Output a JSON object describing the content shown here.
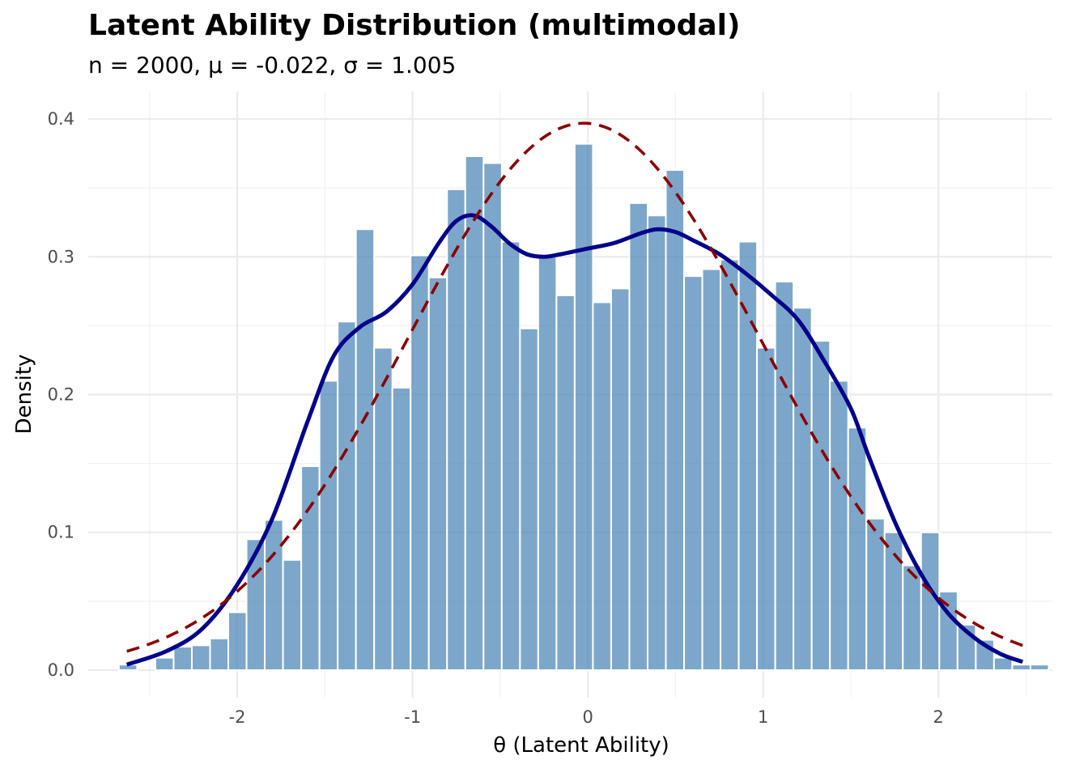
{
  "chart_data": {
    "type": "bar",
    "title": "Latent Ability Distribution (multimodal)",
    "subtitle": "n = 2000, μ = -0.022, σ = 1.005",
    "xlabel": "θ (Latent Ability)",
    "ylabel": "Density",
    "xlim": [
      -2.85,
      2.65
    ],
    "ylim": [
      -0.02,
      0.42
    ],
    "x_ticks": [
      -2,
      -1,
      0,
      1,
      2
    ],
    "x_tick_labels": [
      "-2",
      "-1",
      "0",
      "1",
      "2"
    ],
    "y_ticks": [
      0.0,
      0.1,
      0.2,
      0.3,
      0.4
    ],
    "y_tick_labels": [
      "0.0",
      "0.1",
      "0.2",
      "0.3",
      "0.4"
    ],
    "grid": true,
    "histogram": {
      "name": "histogram",
      "color": "#4682B4",
      "bin_start": -2.675,
      "bin_width": 0.104,
      "values": [
        0.004,
        0.0,
        0.009,
        0.017,
        0.018,
        0.023,
        0.042,
        0.095,
        0.109,
        0.08,
        0.148,
        0.21,
        0.253,
        0.32,
        0.234,
        0.205,
        0.301,
        0.285,
        0.349,
        0.373,
        0.368,
        0.311,
        0.248,
        0.3,
        0.272,
        0.382,
        0.267,
        0.277,
        0.339,
        0.33,
        0.363,
        0.286,
        0.291,
        0.298,
        0.311,
        0.234,
        0.282,
        0.263,
        0.239,
        0.21,
        0.176,
        0.11,
        0.1,
        0.076,
        0.1,
        0.057,
        0.033,
        0.022,
        0.009,
        0.004,
        0.004
      ]
    },
    "series": [
      {
        "type": "line",
        "style": "solid",
        "color": "#00008B",
        "x": [
          -2.63,
          -2.4,
          -2.2,
          -2.0,
          -1.8,
          -1.6,
          -1.45,
          -1.3,
          -1.15,
          -1.0,
          -0.85,
          -0.75,
          -0.65,
          -0.55,
          -0.45,
          -0.35,
          -0.25,
          -0.15,
          0.0,
          0.15,
          0.3,
          0.4,
          0.5,
          0.6,
          0.75,
          0.9,
          1.05,
          1.2,
          1.35,
          1.5,
          1.6,
          1.75,
          1.9,
          2.05,
          2.2,
          2.35,
          2.48
        ],
        "y": [
          0.004,
          0.014,
          0.03,
          0.062,
          0.11,
          0.18,
          0.228,
          0.249,
          0.26,
          0.28,
          0.31,
          0.326,
          0.33,
          0.322,
          0.31,
          0.302,
          0.3,
          0.302,
          0.306,
          0.31,
          0.317,
          0.32,
          0.318,
          0.312,
          0.302,
          0.288,
          0.272,
          0.254,
          0.224,
          0.19,
          0.156,
          0.108,
          0.07,
          0.042,
          0.024,
          0.012,
          0.006
        ]
      },
      {
        "type": "line",
        "style": "dashed",
        "color": "#8B0000",
        "normal_mean": -0.022,
        "normal_sd": 1.005,
        "x_range": [
          -2.63,
          2.48
        ]
      }
    ]
  }
}
